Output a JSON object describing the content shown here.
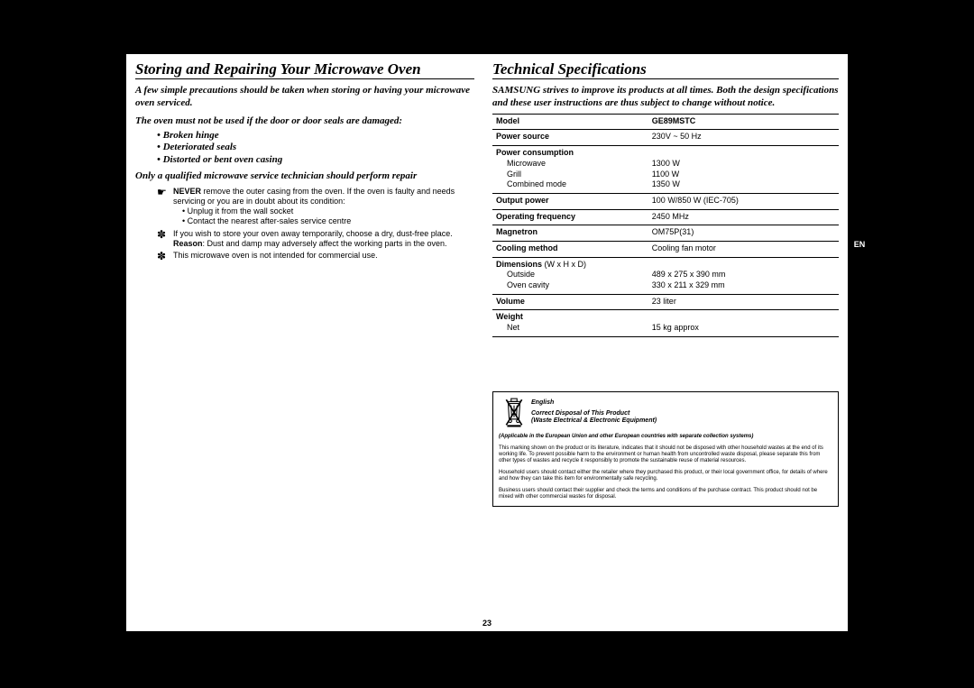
{
  "page_number": "23",
  "side_tab": "EN",
  "left": {
    "title": "Storing and Repairing Your Microwave Oven",
    "p1": "A few simple precautions should be taken when storing or having your microwave oven serviced.",
    "p2": "The oven must not be used if the door or door seals are damaged:",
    "bullets": [
      "Broken hinge",
      "Deteriorated seals",
      "Distorted or bent oven casing"
    ],
    "p3": "Only a qualified microwave service technician should perform repair",
    "tips": [
      {
        "icon": "☛",
        "lines": [
          "<b>NEVER</b> remove the outer casing from the oven. If the oven is faulty and needs servicing or you are in doubt about its condition:"
        ],
        "subs": [
          "Unplug it from the wall socket",
          "Contact the nearest after-sales service centre"
        ]
      },
      {
        "icon": "✽",
        "lines": [
          "If you wish to store your oven away temporarily, choose a dry, dust-free place.",
          "<b>Reason</b>: Dust and damp may adversely affect the working parts in the oven."
        ],
        "subs": []
      },
      {
        "icon": "✽",
        "lines": [
          "This microwave oven is not intended for commercial use."
        ],
        "subs": []
      }
    ]
  },
  "right": {
    "title": "Technical Specifications",
    "p1_a": "SAMSUNG strives to improve its products at all times. Both the design specifications and these user instructions are thus subject to change without notice.",
    "specs": [
      {
        "k": "<b>Model</b>",
        "v": "<b>GE89MSTC</b>"
      },
      {
        "k": "<b>Power source</b>",
        "v": "230V ~ 50 Hz"
      },
      {
        "k": "<b>Power consumption</b><span class='sub-indent'>Microwave</span><span class='sub-indent'>Grill</span><span class='sub-indent'>Combined mode</span>",
        "v": "<br>1300 W<br>1100 W<br>1350 W"
      },
      {
        "k": "<b>Output power</b>",
        "v": "100 W/850 W (IEC-705)"
      },
      {
        "k": "<b>Operating frequency</b>",
        "v": "2450 MHz"
      },
      {
        "k": "<b>Magnetron</b>",
        "v": "OM75P(31)"
      },
      {
        "k": "<b>Cooling method</b>",
        "v": "Cooling fan motor"
      },
      {
        "k": "<b>Dimensions</b> (W x H x D)<span class='sub-indent'>Outside</span><span class='sub-indent'>Oven cavity</span>",
        "v": "<br>489 x 275 x 390 mm<br>330 x 211 x 329 mm"
      },
      {
        "k": "<b>Volume</b>",
        "v": "23 liter"
      },
      {
        "k": "<b>Weight</b><span class='sub-indent'>Net</span>",
        "v": "<br>15 kg approx"
      }
    ],
    "disposal": {
      "lang": "English",
      "head1": "Correct Disposal of This Product",
      "head2": "(Waste Electrical & Electronic Equipment)",
      "p1": "(Applicable in the European Union and other European countries with separate collection systems)",
      "p2": "This marking shown on the product or its literature, indicates that it should not be disposed with other household wastes at the end of its working life. To prevent possible harm to the environment or human health from uncontrolled waste disposal, please separate this from other types of wastes and recycle it responsibly to promote the sustainable reuse of material resources.",
      "p3": "Household users should contact either the retailer where they purchased this product, or their local government office, for details of where and how they can take this item for environmentally safe recycling.",
      "p4": "Business users should contact their supplier and check the terms and conditions of the purchase contract. This product should not be mixed with other commercial wastes for disposal."
    }
  }
}
